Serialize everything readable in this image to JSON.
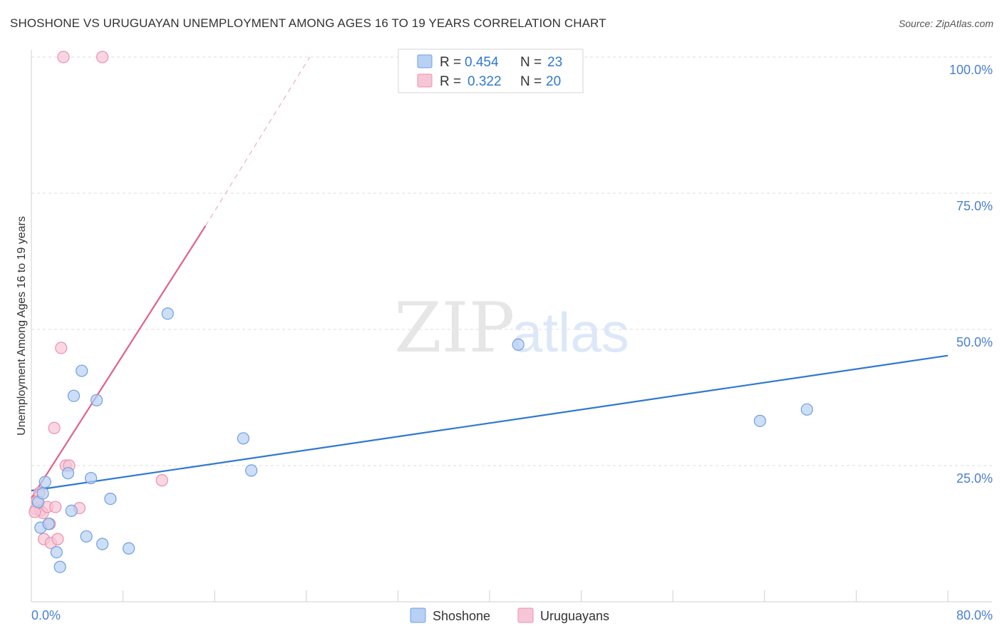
{
  "header": {
    "title": "SHOSHONE VS URUGUAYAN UNEMPLOYMENT AMONG AGES 16 TO 19 YEARS CORRELATION CHART",
    "source": "Source: ZipAtlas.com"
  },
  "watermark": {
    "zip": "ZIP",
    "atlas": "atlas"
  },
  "colors": {
    "shoshone_fill": "#b8d0f4",
    "shoshone_stroke": "#6f9fe0",
    "shoshone_line": "#2f78d2",
    "uruguayan_fill": "#f7c6d6",
    "uruguayan_stroke": "#ec8fb0",
    "uruguayan_line": "#e0608c",
    "tick_text": "#4a7fd0",
    "grid": "#dcdcdc"
  },
  "legend": {
    "r_label": "R =",
    "n_label": "N =",
    "rows": [
      {
        "series": "Shoshone",
        "r": "0.454",
        "n": "23"
      },
      {
        "series": "Uruguayans",
        "r": "0.322",
        "n": "20"
      }
    ]
  },
  "chart_data": {
    "type": "scatter",
    "title": "SHOSHONE VS URUGUAYAN UNEMPLOYMENT AMONG AGES 16 TO 19 YEARS CORRELATION CHART",
    "xlabel": "",
    "ylabel": "Unemployment Among Ages 16 to 19 years",
    "xlim": [
      0,
      80
    ],
    "ylim": [
      0,
      100
    ],
    "x_tick_labels": [
      "0.0%",
      "80.0%"
    ],
    "y_ticks": [
      25,
      50,
      75,
      100
    ],
    "y_tick_labels": [
      "25.0%",
      "50.0%",
      "75.0%",
      "100.0%"
    ],
    "grid": true,
    "legend_position": "top-center",
    "series": [
      {
        "name": "Shoshone",
        "r": 0.454,
        "n": 23,
        "points": [
          [
            0.6,
            18.3
          ],
          [
            0.8,
            13.6
          ],
          [
            1.0,
            19.9
          ],
          [
            1.2,
            22.0
          ],
          [
            1.5,
            14.3
          ],
          [
            2.2,
            9.1
          ],
          [
            2.5,
            6.4
          ],
          [
            3.2,
            23.6
          ],
          [
            3.5,
            16.7
          ],
          [
            3.7,
            37.8
          ],
          [
            4.4,
            42.4
          ],
          [
            4.8,
            12.0
          ],
          [
            5.2,
            22.7
          ],
          [
            5.7,
            37.0
          ],
          [
            6.2,
            10.6
          ],
          [
            6.9,
            18.9
          ],
          [
            8.5,
            9.8
          ],
          [
            11.9,
            52.9
          ],
          [
            18.5,
            30.0
          ],
          [
            19.2,
            24.1
          ],
          [
            42.5,
            47.2
          ],
          [
            63.6,
            33.2
          ],
          [
            67.7,
            35.3
          ]
        ],
        "trend": {
          "x0": 0,
          "y0": 20.4,
          "x1": 80,
          "y1": 45.2
        }
      },
      {
        "name": "Uruguayans",
        "r": 0.322,
        "n": 20,
        "points": [
          [
            0.4,
            17.0
          ],
          [
            0.5,
            18.5
          ],
          [
            0.7,
            20.0
          ],
          [
            0.8,
            16.7
          ],
          [
            1.0,
            16.3
          ],
          [
            1.1,
            11.5
          ],
          [
            1.4,
            17.4
          ],
          [
            1.6,
            14.3
          ],
          [
            1.7,
            10.8
          ],
          [
            2.0,
            31.9
          ],
          [
            2.1,
            17.4
          ],
          [
            2.3,
            11.5
          ],
          [
            2.6,
            46.6
          ],
          [
            2.8,
            100.0
          ],
          [
            3.0,
            25.0
          ],
          [
            3.3,
            25.0
          ],
          [
            4.2,
            17.2
          ],
          [
            6.2,
            100.0
          ],
          [
            11.4,
            22.3
          ],
          [
            0.3,
            16.5
          ]
        ],
        "trend": {
          "x0": 0,
          "y0": 19.0,
          "x1": 15.2,
          "y1": 69.0,
          "dash_to_x": 24.3,
          "dash_to_y": 100.0
        }
      }
    ]
  }
}
